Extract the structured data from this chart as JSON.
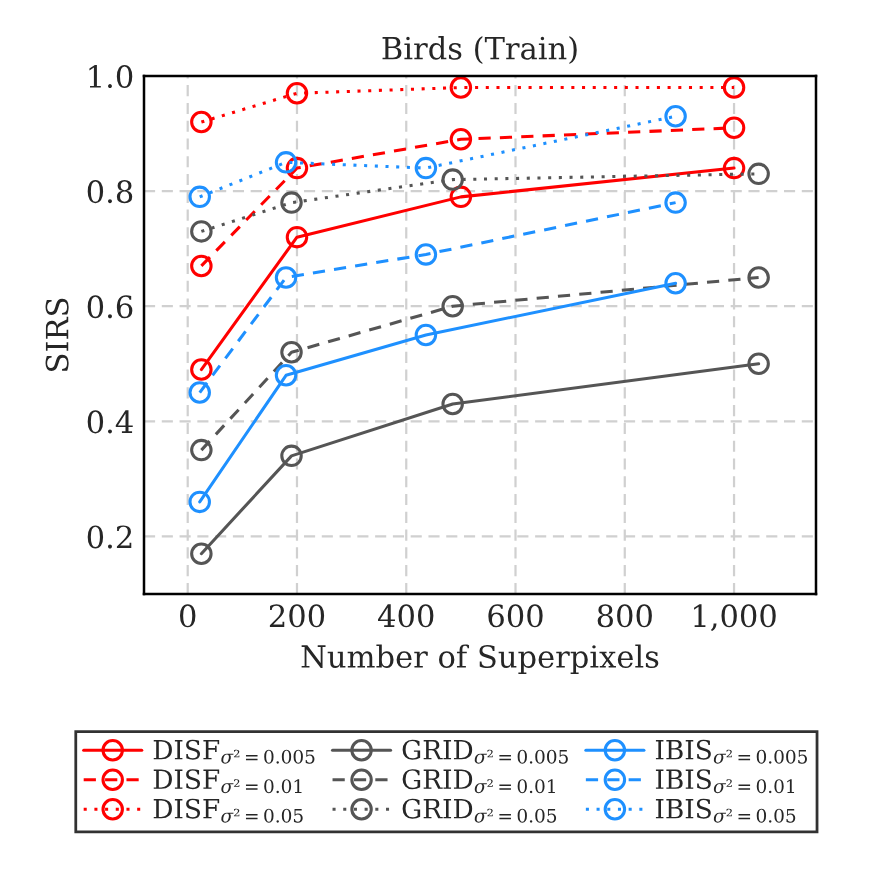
{
  "chart_data": {
    "type": "line",
    "title": "Birds (Train)",
    "xlabel": "Number of Superpixels",
    "ylabel": "SIRS",
    "xlim": [
      -80,
      1150
    ],
    "ylim": [
      0.1,
      1.0
    ],
    "xticks": [
      0,
      200,
      400,
      600,
      800,
      {
        "value": 1000,
        "label": "1,000"
      }
    ],
    "yticks": [
      {
        "value": 0.2,
        "label": "0.2"
      },
      {
        "value": 0.4,
        "label": "0.4"
      },
      {
        "value": 0.6,
        "label": "0.6"
      },
      {
        "value": 0.8,
        "label": "0.8"
      },
      {
        "value": 1.0,
        "label": "1.0"
      }
    ],
    "grid": true,
    "legend": "bottom",
    "marker": "circle",
    "series": [
      {
        "name": "DISF$_{σ²=0.005}$",
        "color": "#ff0000",
        "line_style": "solid",
        "x": [
          25,
          200,
          500,
          1000
        ],
        "values": [
          0.49,
          0.72,
          0.79,
          0.84
        ]
      },
      {
        "name": "DISF$_{σ²=0.01}$",
        "color": "#ff0000",
        "line_style": "dashed",
        "x": [
          25,
          200,
          500,
          1000
        ],
        "values": [
          0.67,
          0.84,
          0.89,
          0.91
        ]
      },
      {
        "name": "DISF$_{σ²=0.05}$",
        "color": "#ff0000",
        "line_style": "dotted",
        "x": [
          25,
          200,
          500,
          1000
        ],
        "values": [
          0.92,
          0.97,
          0.98,
          0.98
        ]
      },
      {
        "name": "GRID$_{σ²=0.005}$",
        "color": "#555555",
        "line_style": "solid",
        "x": [
          25,
          190,
          485,
          1045
        ],
        "values": [
          0.17,
          0.34,
          0.43,
          0.5
        ]
      },
      {
        "name": "GRID$_{σ²=0.01}$",
        "color": "#555555",
        "line_style": "dashed",
        "x": [
          25,
          190,
          485,
          1045
        ],
        "values": [
          0.35,
          0.52,
          0.6,
          0.65
        ]
      },
      {
        "name": "GRID$_{σ²=0.05}$",
        "color": "#555555",
        "line_style": "dotted",
        "x": [
          25,
          190,
          485,
          1045
        ],
        "values": [
          0.73,
          0.78,
          0.82,
          0.83
        ]
      },
      {
        "name": "IBIS$_{σ²=0.005}$",
        "color": "#1e90ff",
        "line_style": "solid",
        "x": [
          22,
          180,
          436,
          893
        ],
        "values": [
          0.26,
          0.48,
          0.55,
          0.64
        ]
      },
      {
        "name": "IBIS$_{σ²=0.01}$",
        "color": "#1e90ff",
        "line_style": "dashed",
        "x": [
          22,
          180,
          436,
          893
        ],
        "values": [
          0.45,
          0.65,
          0.69,
          0.78
        ]
      },
      {
        "name": "IBIS$_{σ²=0.05}$",
        "color": "#1e90ff",
        "line_style": "dotted",
        "x": [
          22,
          180,
          436,
          893
        ],
        "values": [
          0.79,
          0.85,
          0.84,
          0.93
        ]
      }
    ]
  }
}
